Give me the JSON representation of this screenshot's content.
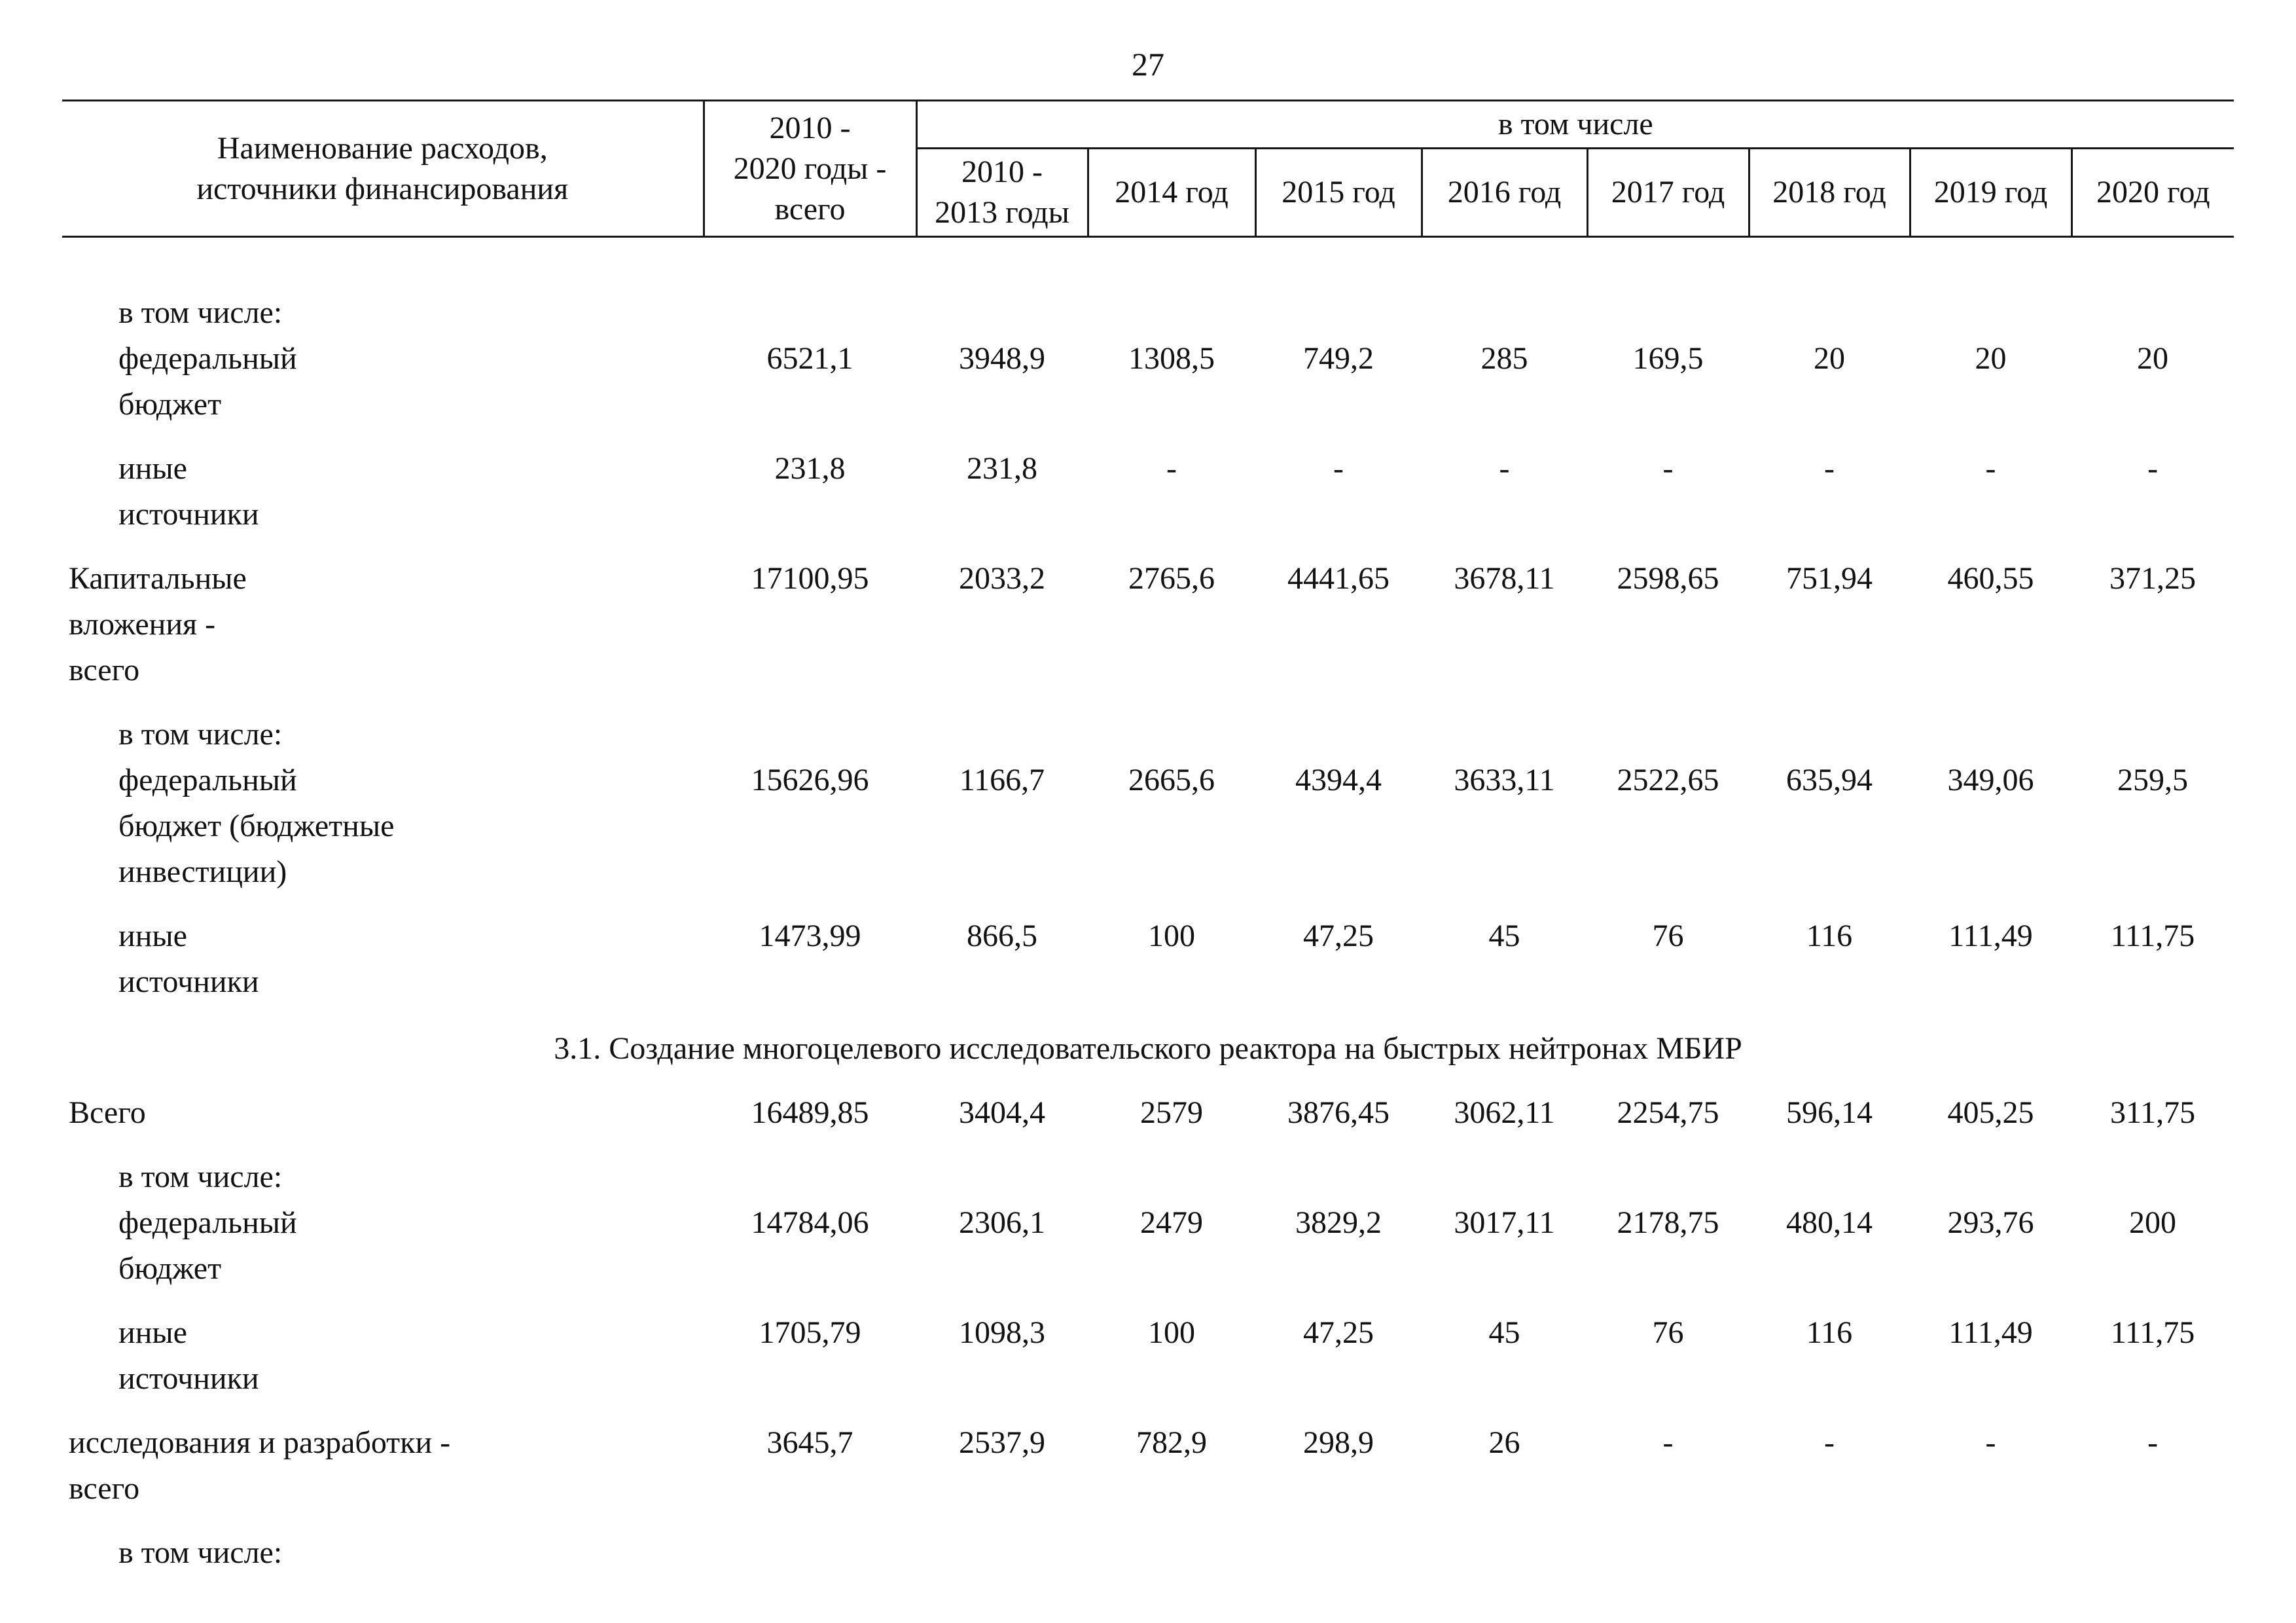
{
  "page": {
    "number": "27"
  },
  "table": {
    "header": {
      "col_name": "Наименование расходов,\nисточники финансирования",
      "col_total": "2010 -\n2020 годы -\nвсего",
      "including": "в том числе",
      "years": [
        "2010 -\n2013 годы",
        "2014 год",
        "2015 год",
        "2016 год",
        "2017 год",
        "2018 год",
        "2019 год",
        "2020 год"
      ]
    },
    "rows": [
      {
        "pre": "в том числе:",
        "label": "федеральный\nбюджет",
        "indent": true,
        "values": [
          "6521,1",
          "3948,9",
          "1308,5",
          "749,2",
          "285",
          "169,5",
          "20",
          "20",
          "20"
        ]
      },
      {
        "label": "иные\nисточники",
        "indent": true,
        "values": [
          "231,8",
          "231,8",
          "-",
          "-",
          "-",
          "-",
          "-",
          "-",
          "-"
        ]
      },
      {
        "label": "Капитальные\nвложения -\nвсего",
        "indent": false,
        "values": [
          "17100,95",
          "2033,2",
          "2765,6",
          "4441,65",
          "3678,11",
          "2598,65",
          "751,94",
          "460,55",
          "371,25"
        ]
      },
      {
        "pre": "в том числе:",
        "label": "федеральный\nбюджет (бюджетные\nинвестиции)",
        "indent": true,
        "values": [
          "15626,96",
          "1166,7",
          "2665,6",
          "4394,4",
          "3633,11",
          "2522,65",
          "635,94",
          "349,06",
          "259,5"
        ]
      },
      {
        "label": "иные\nисточники",
        "indent": true,
        "values": [
          "1473,99",
          "866,5",
          "100",
          "47,25",
          "45",
          "76",
          "116",
          "111,49",
          "111,75"
        ]
      },
      {
        "section": "3.1. Создание многоцелевого исследовательского реактора на быстрых нейтронах МБИР"
      },
      {
        "label": "Всего",
        "indent": false,
        "values": [
          "16489,85",
          "3404,4",
          "2579",
          "3876,45",
          "3062,11",
          "2254,75",
          "596,14",
          "405,25",
          "311,75"
        ]
      },
      {
        "pre": "в том числе:",
        "label": "федеральный\nбюджет",
        "indent": true,
        "values": [
          "14784,06",
          "2306,1",
          "2479",
          "3829,2",
          "3017,11",
          "2178,75",
          "480,14",
          "293,76",
          "200"
        ]
      },
      {
        "label": "иные\nисточники",
        "indent": true,
        "values": [
          "1705,79",
          "1098,3",
          "100",
          "47,25",
          "45",
          "76",
          "116",
          "111,49",
          "111,75"
        ]
      },
      {
        "label": "исследования и разработки -\nвсего",
        "indent": false,
        "values": [
          "3645,7",
          "2537,9",
          "782,9",
          "298,9",
          "26",
          "-",
          "-",
          "-",
          "-"
        ]
      },
      {
        "label": "в том числе:",
        "indent": true,
        "values": []
      }
    ]
  }
}
